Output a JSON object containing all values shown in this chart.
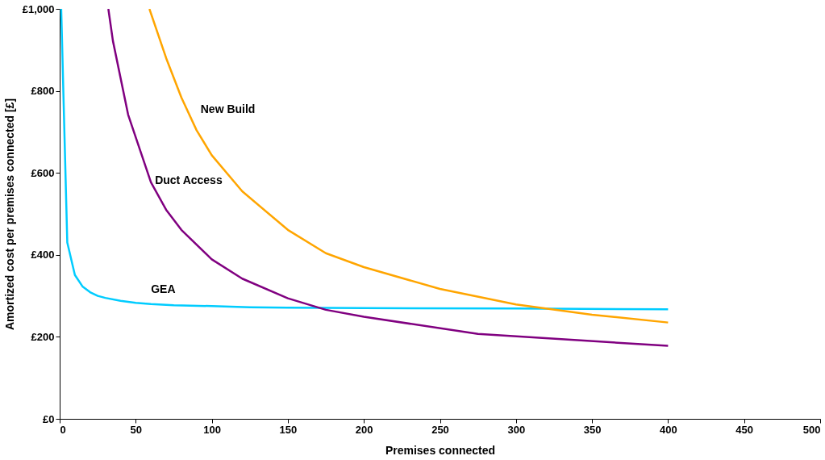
{
  "chart_data": {
    "type": "line",
    "xlabel": "Premises connected",
    "ylabel": "Amortized cost per premises connected [£]",
    "xlim": [
      0,
      500
    ],
    "xticks": [
      0,
      50,
      100,
      150,
      200,
      250,
      300,
      350,
      400,
      450,
      500
    ],
    "ylim": [
      0,
      1000
    ],
    "yticks": [
      {
        "value": 0,
        "label": "£0"
      },
      {
        "value": 200,
        "label": "£200"
      },
      {
        "value": 400,
        "label": "£400"
      },
      {
        "value": 600,
        "label": "£600"
      },
      {
        "value": 800,
        "label": "£800"
      },
      {
        "value": 1000,
        "label": "£1,000"
      }
    ],
    "grid": false,
    "marker": "none",
    "line_style": "solid",
    "series": [
      {
        "name": "GEA",
        "color": "#00ccff",
        "x": [
          1,
          5,
          10,
          15,
          20,
          25,
          30,
          40,
          50,
          60,
          75,
          100,
          125,
          150,
          200,
          300,
          400
        ],
        "values": [
          1000,
          430,
          351,
          323,
          309,
          300,
          295,
          288,
          283,
          280,
          277,
          275,
          272,
          271,
          270,
          269,
          267
        ]
      },
      {
        "name": "Duct Access",
        "color": "#800080",
        "x": [
          32,
          35,
          45,
          60,
          70,
          80,
          100,
          120,
          150,
          175,
          200,
          275,
          400
        ],
        "values": [
          1000,
          922,
          742,
          577,
          510,
          461,
          389,
          342,
          294,
          266,
          249,
          207,
          178
        ]
      },
      {
        "name": "New Build",
        "color": "#ffa500",
        "x": [
          59,
          70,
          80,
          90,
          100,
          120,
          150,
          175,
          200,
          250,
          300,
          350,
          400
        ],
        "values": [
          1000,
          880,
          784,
          704,
          643,
          555,
          461,
          404,
          370,
          317,
          279,
          254,
          235
        ]
      }
    ]
  }
}
